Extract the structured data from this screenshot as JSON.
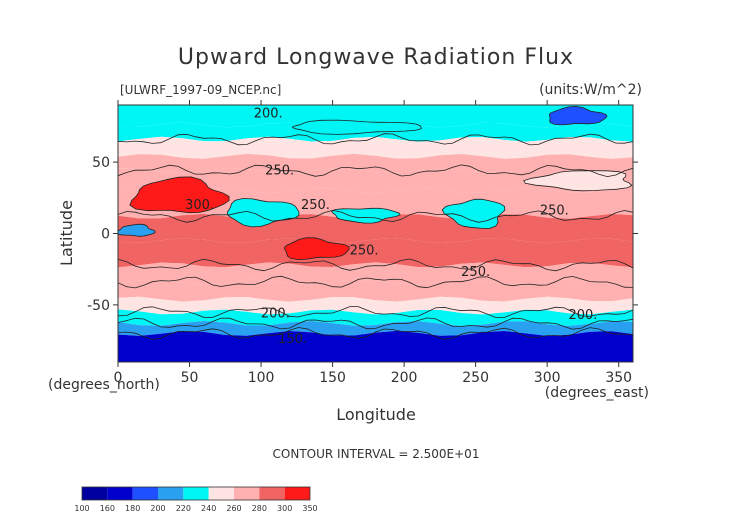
{
  "chart_data": {
    "type": "heatmap",
    "title": "Upward Longwave Radiation Flux",
    "source_label": "[ULWRF_1997-09_NCEP.nc]",
    "units_label": "(units:W/m^2)",
    "xlabel": "Longitude",
    "ylabel": "Latitude",
    "x_unit_label": "(degrees_east)",
    "y_unit_label": "(degrees_north)",
    "xlim": [
      0,
      360
    ],
    "ylim": [
      -90,
      90
    ],
    "x_ticks": [
      0,
      50,
      100,
      150,
      200,
      250,
      300,
      350
    ],
    "y_ticks": [
      -50,
      0,
      50
    ],
    "contour_interval_text": "CONTOUR INTERVAL = 2.500E+01",
    "contour_labels": [
      {
        "text": "200.",
        "lon": 105,
        "lat": 84
      },
      {
        "text": "250.",
        "lon": 113,
        "lat": 44
      },
      {
        "text": "300.",
        "lon": 57,
        "lat": 20
      },
      {
        "text": "250.",
        "lon": 138,
        "lat": 20
      },
      {
        "text": "250.",
        "lon": 305,
        "lat": 16
      },
      {
        "text": "250.",
        "lon": 172,
        "lat": -12
      },
      {
        "text": "250.",
        "lon": 250,
        "lat": -27
      },
      {
        "text": "200.",
        "lon": 110,
        "lat": -56
      },
      {
        "text": "200.",
        "lon": 325,
        "lat": -57
      },
      {
        "text": "150.",
        "lon": 122,
        "lat": -74
      }
    ],
    "colorbar": {
      "levels": [
        "100",
        "160",
        "180",
        "200",
        "220",
        "240",
        "260",
        "280",
        "300",
        "350"
      ],
      "colors": [
        "#0000a0",
        "#0000cd",
        "#1e50ff",
        "#2aa0f0",
        "#00f5f5",
        "#ffe4e4",
        "#ffb0b0",
        "#f06464",
        "#ff1a1a"
      ]
    },
    "field_bands": [
      {
        "lat_from": 90,
        "lat_to": 76,
        "level": 220
      },
      {
        "lat_from": 76,
        "lat_to": 66,
        "level": 235
      },
      {
        "lat_from": 66,
        "lat_to": 54,
        "level": 250
      },
      {
        "lat_from": 54,
        "lat_to": 44,
        "level": 265
      },
      {
        "lat_from": 44,
        "lat_to": 30,
        "level": 275
      },
      {
        "lat_from": 30,
        "lat_to": 12,
        "level": 262
      },
      {
        "lat_from": 12,
        "lat_to": -5,
        "level": 285
      },
      {
        "lat_from": -5,
        "lat_to": -22,
        "level": 290
      },
      {
        "lat_from": -22,
        "lat_to": -34,
        "level": 278
      },
      {
        "lat_from": -34,
        "lat_to": -46,
        "level": 262
      },
      {
        "lat_from": -46,
        "lat_to": -55,
        "level": 242
      },
      {
        "lat_from": -55,
        "lat_to": -63,
        "level": 225
      },
      {
        "lat_from": -63,
        "lat_to": -70,
        "level": 205
      },
      {
        "lat_from": -70,
        "lat_to": -90,
        "level": 165
      }
    ],
    "field_patches": [
      {
        "lon_from": 10,
        "lon_to": 75,
        "lat_from": 38,
        "lat_to": 14,
        "level": 320
      },
      {
        "lon_from": 115,
        "lon_to": 160,
        "lat_from": -4,
        "lat_to": -18,
        "level": 315
      },
      {
        "lon_from": 75,
        "lon_to": 125,
        "lat_from": 24,
        "lat_to": 6,
        "level": 230
      },
      {
        "lon_from": 150,
        "lon_to": 195,
        "lat_from": 18,
        "lat_to": 8,
        "level": 230
      },
      {
        "lon_from": 230,
        "lon_to": 270,
        "lat_from": 24,
        "lat_to": 4,
        "level": 230
      },
      {
        "lon_from": 290,
        "lon_to": 360,
        "lat_from": 44,
        "lat_to": 30,
        "level": 240
      },
      {
        "lon_from": 0,
        "lon_to": 25,
        "lat_from": 6,
        "lat_to": -2,
        "level": 210
      },
      {
        "lon_from": 300,
        "lon_to": 340,
        "lat_from": 88,
        "lat_to": 76,
        "level": 195
      },
      {
        "lon_from": 120,
        "lon_to": 210,
        "lat_from": 79,
        "lat_to": 70,
        "level": 225
      }
    ]
  }
}
